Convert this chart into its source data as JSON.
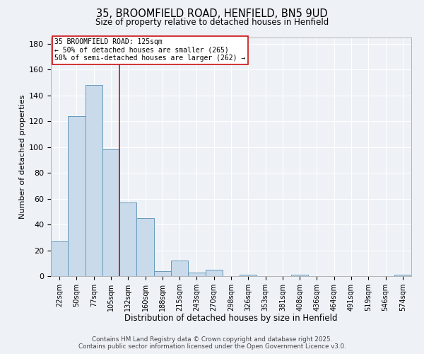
{
  "title": "35, BROOMFIELD ROAD, HENFIELD, BN5 9UD",
  "subtitle": "Size of property relative to detached houses in Henfield",
  "xlabel": "Distribution of detached houses by size in Henfield",
  "ylabel": "Number of detached properties",
  "bar_labels": [
    "22sqm",
    "50sqm",
    "77sqm",
    "105sqm",
    "132sqm",
    "160sqm",
    "188sqm",
    "215sqm",
    "243sqm",
    "270sqm",
    "298sqm",
    "326sqm",
    "353sqm",
    "381sqm",
    "408sqm",
    "436sqm",
    "464sqm",
    "491sqm",
    "519sqm",
    "546sqm",
    "574sqm"
  ],
  "bar_values": [
    27,
    124,
    148,
    98,
    57,
    45,
    4,
    12,
    3,
    5,
    0,
    1,
    0,
    0,
    1,
    0,
    0,
    0,
    0,
    0,
    1
  ],
  "bar_color": "#c9daea",
  "bar_edge_color": "#6699bb",
  "background_color": "#eef2f7",
  "grid_color": "#ffffff",
  "vline_color": "#cc1111",
  "annotation_text": "35 BROOMFIELD ROAD: 125sqm\n← 50% of detached houses are smaller (265)\n50% of semi-detached houses are larger (262) →",
  "annotation_box_color": "#ffffff",
  "annotation_box_edge_color": "#cc1111",
  "ylim": [
    0,
    185
  ],
  "yticks": [
    0,
    20,
    40,
    60,
    80,
    100,
    120,
    140,
    160,
    180
  ],
  "footer_line1": "Contains HM Land Registry data © Crown copyright and database right 2025.",
  "footer_line2": "Contains public sector information licensed under the Open Government Licence v3.0."
}
